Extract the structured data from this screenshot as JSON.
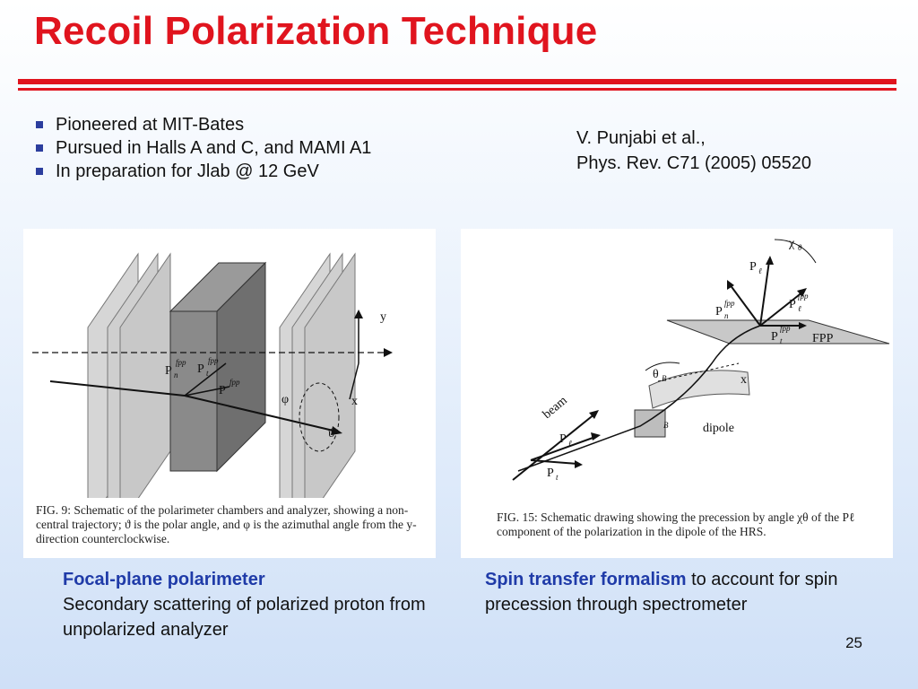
{
  "slide": {
    "title": "Recoil Polarization Technique",
    "bullets": [
      "Pioneered at MIT-Bates",
      "Pursued in Halls A and C, and MAMI A1",
      "In preparation for Jlab @ 12 GeV"
    ],
    "reference": {
      "line1": "V. Punjabi et al.,",
      "line2": "Phys. Rev. C71 (2005) 05520"
    },
    "figure1": {
      "caption": "FIG. 9: Schematic of the polarimeter chambers and analyzer, showing a non-central trajectory; ϑ is the polar angle, and φ is the azimuthal angle from the y-direction counterclockwise.",
      "labels": {
        "y": "y",
        "x": "x",
        "pn": "P",
        "pn_sub": "n",
        "pn_sup": "fpp",
        "pt": "P",
        "pt_sub": "t",
        "pt_sup": "fpp",
        "p": "P",
        "p_sup": "fpp",
        "phi": "φ",
        "theta": "ϑ"
      }
    },
    "figure2": {
      "caption": "FIG. 15: Schematic drawing showing the precession by angle χθ of the Pℓ component of the polarization in the dipole of the HRS.",
      "labels": {
        "chi": "χ",
        "chi_sub": "θ",
        "pl": "P",
        "pl_sub": "ℓ",
        "pn": "P",
        "pn_sub": "n",
        "pn_sup": "fpp",
        "plfpp": "P",
        "plfpp_sub": "ℓ",
        "plfpp_sup": "fpp",
        "ptfpp": "P",
        "ptfpp_sub": "t",
        "ptfpp_sup": "fpp",
        "fpp": "FPP",
        "thetab": "θ",
        "thetab_sub": "B",
        "x": "x",
        "dipole": "dipole",
        "b": "B",
        "beam": "beam",
        "pl2": "P",
        "pl2_sub": "ℓ",
        "pt2": "P",
        "pt2_sub": "t"
      }
    },
    "bottom_left": {
      "heading": "Focal-plane polarimeter",
      "text": "Secondary scattering of polarized proton from unpolarized analyzer"
    },
    "bottom_right": {
      "heading": "Spin transfer formalism",
      "text": " to account for spin precession through spectrometer"
    },
    "page_number": "25"
  }
}
